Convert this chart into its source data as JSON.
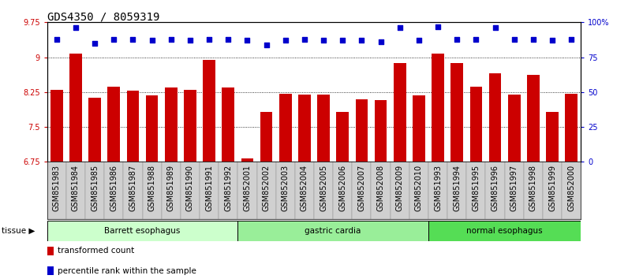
{
  "title": "GDS4350 / 8059319",
  "samples": [
    "GSM851983",
    "GSM851984",
    "GSM851985",
    "GSM851986",
    "GSM851987",
    "GSM851988",
    "GSM851989",
    "GSM851990",
    "GSM851991",
    "GSM851992",
    "GSM852001",
    "GSM852002",
    "GSM852003",
    "GSM852004",
    "GSM852005",
    "GSM852006",
    "GSM852007",
    "GSM852008",
    "GSM852009",
    "GSM852010",
    "GSM851993",
    "GSM851994",
    "GSM851995",
    "GSM851996",
    "GSM851997",
    "GSM851998",
    "GSM851999",
    "GSM852000"
  ],
  "bar_values": [
    8.3,
    9.07,
    8.12,
    8.37,
    8.28,
    8.18,
    8.35,
    8.29,
    8.95,
    8.35,
    6.82,
    7.82,
    8.22,
    8.2,
    8.2,
    7.82,
    8.1,
    8.08,
    8.87,
    8.18,
    9.07,
    8.87,
    8.36,
    8.65,
    8.19,
    8.62,
    7.82,
    8.22
  ],
  "dot_values": [
    88,
    96,
    85,
    88,
    88,
    87,
    88,
    87,
    88,
    88,
    87,
    84,
    87,
    88,
    87,
    87,
    87,
    86,
    96,
    87,
    97,
    88,
    88,
    96,
    88,
    88,
    87,
    88
  ],
  "groups": [
    {
      "label": "Barrett esophagus",
      "start": 0,
      "end": 10,
      "color": "#ccffcc"
    },
    {
      "label": "gastric cardia",
      "start": 10,
      "end": 20,
      "color": "#99ee99"
    },
    {
      "label": "normal esophagus",
      "start": 20,
      "end": 28,
      "color": "#55dd55"
    }
  ],
  "ylim_left": [
    6.75,
    9.75
  ],
  "ylim_right": [
    0,
    100
  ],
  "yticks_left": [
    6.75,
    7.5,
    8.25,
    9.0,
    9.75
  ],
  "yticks_right": [
    0,
    25,
    50,
    75,
    100
  ],
  "ytick_labels_left": [
    "6.75",
    "7.5",
    "8.25",
    "9",
    "9.75"
  ],
  "ytick_labels_right": [
    "0",
    "25",
    "50",
    "75",
    "100%"
  ],
  "bar_color": "#cc0000",
  "dot_color": "#0000cc",
  "background_color": "#ffffff",
  "legend_items": [
    {
      "label": "transformed count",
      "color": "#cc0000"
    },
    {
      "label": "percentile rank within the sample",
      "color": "#0000cc"
    }
  ],
  "tissue_label": "tissue",
  "title_fontsize": 10,
  "tick_fontsize": 7,
  "label_fontsize": 8
}
